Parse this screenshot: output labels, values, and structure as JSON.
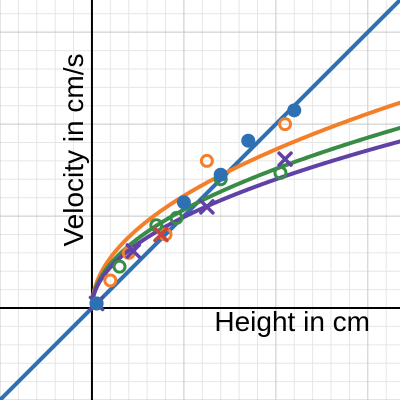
{
  "chart_data": {
    "type": "scatter",
    "xlabel": "Height in cm",
    "ylabel": "Velocity in cm/s",
    "xlim": [
      -1,
      3.35
    ],
    "ylim": [
      -1,
      3.35
    ],
    "grid": true,
    "grid_major_step": 1,
    "grid_minor_step": 0.2,
    "axes_color": "#000000",
    "grid_major_color": "#c8c8c8",
    "grid_minor_color": "#e6e6e6",
    "series": [
      {
        "color": "#f47f2b",
        "marker": "circle-open",
        "points": [
          {
            "x": 0.05,
            "y": 0.05
          },
          {
            "x": 0.2,
            "y": 0.3
          },
          {
            "x": 0.4,
            "y": 0.6
          },
          {
            "x": 0.8,
            "y": 0.8
          },
          {
            "x": 1.25,
            "y": 1.6
          },
          {
            "x": 2.1,
            "y": 2.0
          }
        ]
      },
      {
        "color": "#388c46",
        "marker": "circle-open",
        "points": [
          {
            "x": 0.05,
            "y": 0.05
          },
          {
            "x": 0.3,
            "y": 0.45
          },
          {
            "x": 0.7,
            "y": 0.9
          },
          {
            "x": 0.92,
            "y": 0.98
          },
          {
            "x": 1.4,
            "y": 1.4
          },
          {
            "x": 2.05,
            "y": 1.47
          }
        ]
      },
      {
        "color": "#c74440",
        "marker": "x",
        "points": [
          {
            "x": 0.05,
            "y": 0.05
          },
          {
            "x": 0.75,
            "y": 0.8
          }
        ]
      },
      {
        "color": "#6042a6",
        "marker": "x",
        "points": [
          {
            "x": 0.05,
            "y": 0.05
          },
          {
            "x": 0.45,
            "y": 0.62
          },
          {
            "x": 1.25,
            "y": 1.1
          },
          {
            "x": 2.1,
            "y": 1.62
          }
        ]
      },
      {
        "color": "#2d70b3",
        "marker": "circle-filled",
        "points": [
          {
            "x": 0.05,
            "y": 0.05
          },
          {
            "x": 1.0,
            "y": 1.15
          },
          {
            "x": 1.4,
            "y": 1.45
          },
          {
            "x": 1.7,
            "y": 1.82
          },
          {
            "x": 2.2,
            "y": 2.15
          }
        ]
      }
    ],
    "curves": [
      {
        "color": "#2d70b3",
        "kind": "line",
        "slope": 1,
        "intercept": 0
      },
      {
        "color": "#f47f2b",
        "kind": "sqrt",
        "coef": 1.22
      },
      {
        "color": "#388c46",
        "kind": "sqrt",
        "coef": 1.07
      },
      {
        "color": "#6042a6",
        "kind": "sqrt",
        "coef": 0.99
      }
    ]
  }
}
